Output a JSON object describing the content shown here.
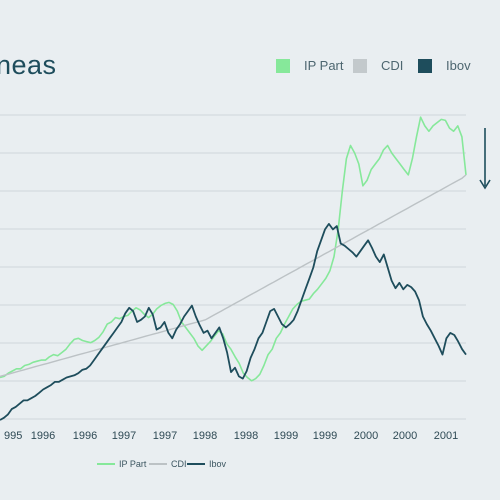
{
  "title": "neas",
  "legend_top": [
    {
      "label": "IP Part",
      "color": "#86e89a"
    },
    {
      "label": "CDI",
      "color": "#c3c9cc"
    },
    {
      "label": "Ibov",
      "color": "#1e4d5c"
    }
  ],
  "legend_bottom": [
    {
      "label": "IP Part",
      "color": "#86e89a"
    },
    {
      "label": "CDI",
      "color": "#bcc2c5"
    },
    {
      "label": "Ibov",
      "color": "#1e4d5c"
    }
  ],
  "colors": {
    "background": "#e9eef1",
    "grid": "#cfd6da",
    "arrow": "#1e4d5c"
  },
  "chart_data": {
    "type": "line",
    "x_tick_labels": [
      "995",
      "1996",
      "1996",
      "1997",
      "1997",
      "1998",
      "1998",
      "1999",
      "1999",
      "2000",
      "2000",
      "2001"
    ],
    "grid": true,
    "annotation": "down-arrow",
    "series": [
      {
        "name": "IP Part",
        "values": [
          99,
          100,
          103,
          105,
          107,
          107,
          110,
          111,
          113,
          114,
          115,
          115,
          118,
          120,
          119,
          122,
          125,
          130,
          134,
          135,
          133,
          132,
          131,
          133,
          136,
          141,
          148,
          150,
          154,
          153,
          155,
          156,
          160,
          163,
          161,
          157,
          154,
          157,
          162,
          165,
          167,
          168,
          166,
          160,
          150,
          145,
          140,
          135,
          128,
          124,
          128,
          132,
          137,
          142,
          139,
          130,
          125,
          118,
          112,
          103,
          99,
          96,
          98,
          102,
          110,
          120,
          125,
          135,
          140,
          148,
          155,
          162,
          166,
          169,
          170,
          171,
          176,
          180,
          185,
          190,
          197,
          210,
          235,
          270,
          300,
          312,
          305,
          295,
          275,
          280,
          290,
          295,
          300,
          308,
          312,
          305,
          300,
          295,
          290,
          285,
          300,
          320,
          338,
          330,
          325,
          330,
          333,
          336,
          335,
          328,
          325,
          330,
          320,
          285
        ]
      },
      {
        "name": "CDI",
        "values": [
          100,
          101,
          102,
          103,
          104,
          105,
          106,
          107,
          108,
          109,
          110,
          111,
          112,
          113,
          114,
          115,
          116,
          117,
          118,
          119,
          120,
          121,
          122,
          123,
          124,
          125,
          126,
          127,
          128,
          129,
          130,
          131,
          132,
          133,
          134,
          135,
          136,
          137,
          138,
          139,
          140,
          141,
          142,
          143,
          144,
          145,
          146,
          147,
          148,
          149,
          150,
          151,
          152,
          154,
          156,
          158,
          160,
          162,
          164,
          166,
          168,
          170,
          172,
          174,
          176,
          178,
          180,
          182,
          184,
          186,
          188,
          190,
          192,
          194,
          196,
          198,
          200,
          202,
          204,
          206,
          208,
          210,
          212,
          214,
          216,
          218,
          220,
          222,
          224,
          226,
          228,
          230,
          232,
          234,
          236,
          238,
          240,
          242,
          244,
          246,
          248,
          250,
          252,
          254,
          256,
          258,
          260,
          262,
          264,
          266,
          268,
          270,
          272,
          274,
          276,
          278,
          280,
          282,
          285
        ]
      },
      {
        "name": "Ibov",
        "values": [
          60,
          62,
          65,
          70,
          72,
          75,
          78,
          78,
          80,
          82,
          85,
          88,
          90,
          92,
          95,
          95,
          97,
          99,
          100,
          101,
          103,
          106,
          107,
          110,
          115,
          120,
          125,
          130,
          135,
          140,
          145,
          150,
          158,
          163,
          160,
          150,
          152,
          155,
          163,
          157,
          143,
          145,
          150,
          140,
          135,
          143,
          148,
          155,
          160,
          165,
          155,
          147,
          140,
          142,
          135,
          140,
          145,
          135,
          122,
          104,
          108,
          100,
          98,
          105,
          117,
          125,
          135,
          140,
          150,
          160,
          162,
          155,
          148,
          145,
          148,
          152,
          160,
          170,
          180,
          190,
          200,
          215,
          225,
          235,
          240,
          235,
          238,
          222,
          220,
          217,
          214,
          210,
          215,
          220,
          225,
          218,
          210,
          205,
          212,
          200,
          188,
          181,
          186,
          180,
          184,
          182,
          178,
          170,
          155,
          148,
          142,
          135,
          128,
          120,
          135,
          140,
          138,
          132,
          125,
          120
        ]
      }
    ]
  }
}
